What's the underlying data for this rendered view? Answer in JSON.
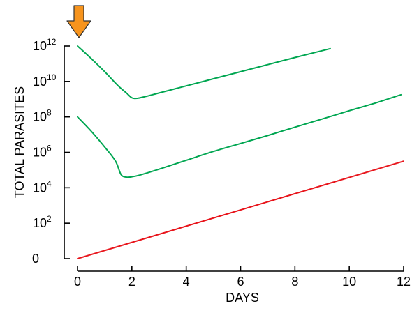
{
  "chart_data": {
    "type": "line",
    "title": "",
    "xlabel": "DAYS",
    "ylabel": "TOTAL PARASITES",
    "x_scale": "linear",
    "y_scale": "log10",
    "xlim": [
      0,
      12
    ],
    "ylim_log10": [
      0,
      12
    ],
    "grid": false,
    "legend": "none",
    "x_ticks": [
      {
        "value": 0,
        "label": "0"
      },
      {
        "value": 2,
        "label": "2"
      },
      {
        "value": 4,
        "label": "4"
      },
      {
        "value": 6,
        "label": "6"
      },
      {
        "value": 8,
        "label": "8"
      },
      {
        "value": 10,
        "label": "10"
      },
      {
        "value": 12,
        "label": "12"
      }
    ],
    "y_ticks": [
      {
        "value": 0,
        "label": "0",
        "base": "",
        "exp": ""
      },
      {
        "value": 2,
        "label": "",
        "base": "10",
        "exp": "2"
      },
      {
        "value": 4,
        "label": "",
        "base": "10",
        "exp": "4"
      },
      {
        "value": 6,
        "label": "",
        "base": "10",
        "exp": "6"
      },
      {
        "value": 8,
        "label": "",
        "base": "10",
        "exp": "8"
      },
      {
        "value": 10,
        "label": "",
        "base": "10",
        "exp": "10"
      },
      {
        "value": 12,
        "label": "",
        "base": "10",
        "exp": "12"
      }
    ],
    "series": [
      {
        "color": "#00a651",
        "points": [
          [
            0,
            12
          ],
          [
            0.5,
            11.3
          ],
          [
            1.0,
            10.55
          ],
          [
            1.5,
            9.75
          ],
          [
            1.8,
            9.35
          ],
          [
            2.0,
            9.08
          ],
          [
            2.2,
            9.05
          ],
          [
            2.5,
            9.15
          ],
          [
            3.0,
            9.35
          ],
          [
            4.0,
            9.75
          ],
          [
            5.0,
            10.15
          ],
          [
            6.0,
            10.55
          ],
          [
            7.0,
            10.95
          ],
          [
            8.0,
            11.35
          ],
          [
            9.3,
            11.85
          ]
        ]
      },
      {
        "color": "#00a651",
        "points": [
          [
            0,
            8
          ],
          [
            0.5,
            7.2
          ],
          [
            1.0,
            6.3
          ],
          [
            1.4,
            5.5
          ],
          [
            1.6,
            4.75
          ],
          [
            1.8,
            4.6
          ],
          [
            2.0,
            4.62
          ],
          [
            2.3,
            4.72
          ],
          [
            3.0,
            5.05
          ],
          [
            4.0,
            5.55
          ],
          [
            5.0,
            6.05
          ],
          [
            6.0,
            6.5
          ],
          [
            7.0,
            6.95
          ],
          [
            8.0,
            7.42
          ],
          [
            9.0,
            7.88
          ],
          [
            10.0,
            8.35
          ],
          [
            11.0,
            8.8
          ],
          [
            11.9,
            9.25
          ]
        ]
      },
      {
        "color": "#e8141b",
        "points": [
          [
            0,
            0
          ],
          [
            12,
            5.5
          ]
        ]
      }
    ],
    "annotations": [
      {
        "type": "arrow-down",
        "x": 0,
        "color": "#f7941d",
        "stroke": "#333333"
      }
    ]
  }
}
